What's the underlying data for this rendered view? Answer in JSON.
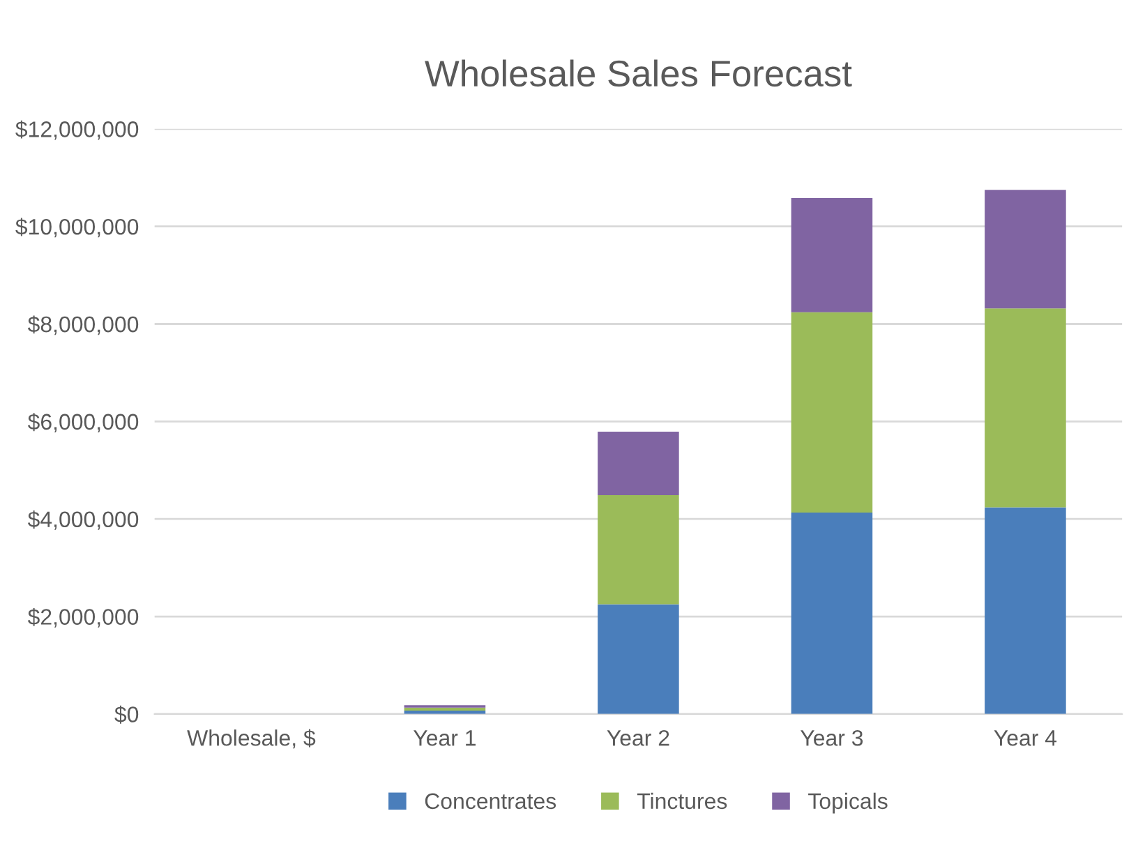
{
  "chart_data": {
    "type": "bar",
    "title": "Wholesale Sales Forecast",
    "stacked": true,
    "categories": [
      "Wholesale, $",
      "Year 1",
      "Year 2",
      "Year 3",
      "Year 4"
    ],
    "series": [
      {
        "name": "Concentrates",
        "color": "#4a7ebb",
        "values": [
          0,
          70000,
          2250000,
          4130000,
          4240000
        ]
      },
      {
        "name": "Tinctures",
        "color": "#9bbb59",
        "values": [
          0,
          60000,
          2240000,
          4110000,
          4080000
        ]
      },
      {
        "name": "Topicals",
        "color": "#8064a2",
        "values": [
          0,
          50000,
          1300000,
          2340000,
          2430000
        ]
      }
    ],
    "ylim": [
      0,
      12000000
    ],
    "yticks": [
      {
        "value": 0,
        "label": "$0"
      },
      {
        "value": 2000000,
        "label": "$2,000,000"
      },
      {
        "value": 4000000,
        "label": "$4,000,000"
      },
      {
        "value": 6000000,
        "label": "$6,000,000"
      },
      {
        "value": 8000000,
        "label": "$8,000,000"
      },
      {
        "value": 10000000,
        "label": "$10,000,000"
      },
      {
        "value": 12000000,
        "label": "$12,000,000"
      }
    ],
    "grid": "y",
    "legend": "bottom"
  }
}
